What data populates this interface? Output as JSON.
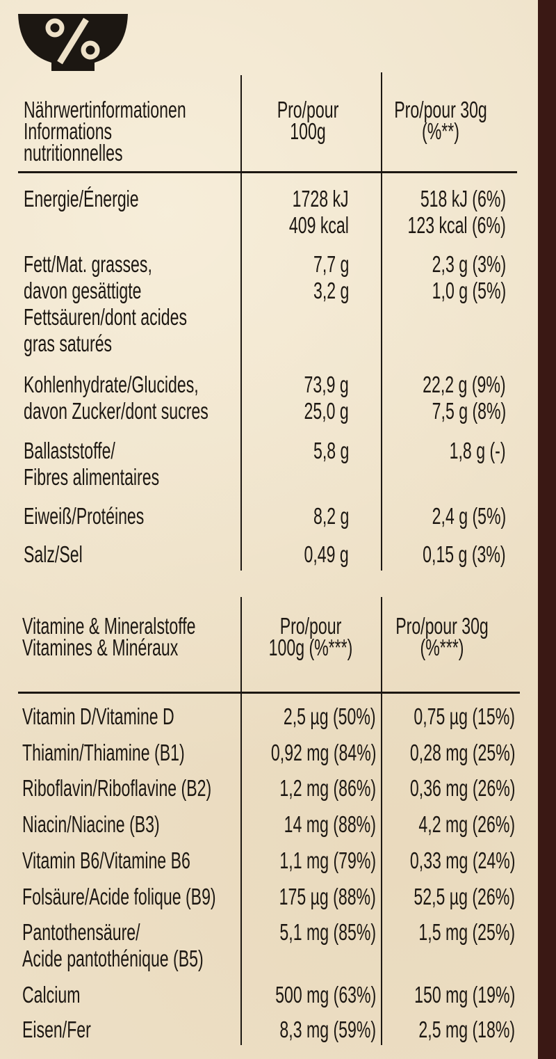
{
  "icon": "percent-bowl-icon",
  "colors": {
    "background": "#eee1c8",
    "text": "#1c1712",
    "edge_strip": "#3a1814"
  },
  "nutrition": {
    "header": {
      "label": [
        "Nährwertinformationen",
        "Informations",
        "nutritionnelles"
      ],
      "col1": [
        "Pro/pour",
        "100g"
      ],
      "col2": [
        "Pro/pour 30g",
        "(%**)"
      ]
    },
    "rows": [
      {
        "label": [
          "Energie/Énergie"
        ],
        "col1": [
          "1728 kJ",
          "409 kcal"
        ],
        "col2": [
          "518 kJ (6%)",
          "123 kcal (6%)"
        ]
      },
      {
        "label": [
          "Fett/Mat. grasses,",
          "davon gesättigte",
          "Fettsäuren/dont acides",
          "gras saturés"
        ],
        "col1": [
          "7,7 g",
          "3,2 g"
        ],
        "col2": [
          "2,3 g (3%)",
          "1,0 g (5%)"
        ]
      },
      {
        "label": [
          "Kohlenhydrate/Glucides,",
          "davon Zucker/dont sucres"
        ],
        "col1": [
          "73,9 g",
          "25,0 g"
        ],
        "col2": [
          "22,2 g (9%)",
          "7,5 g (8%)"
        ]
      },
      {
        "label": [
          "Ballaststoffe/",
          "Fibres alimentaires"
        ],
        "col1": [
          "5,8 g"
        ],
        "col2": [
          "1,8 g (-)"
        ]
      },
      {
        "label": [
          "Eiweiß/Protéines"
        ],
        "col1": [
          "8,2 g"
        ],
        "col2": [
          "2,4 g (5%)"
        ]
      },
      {
        "label": [
          "Salz/Sel"
        ],
        "col1": [
          "0,49 g"
        ],
        "col2": [
          "0,15 g (3%)"
        ]
      }
    ]
  },
  "vitamins": {
    "header": {
      "label": [
        "Vitamine & Mineralstoffe",
        "Vitamines & Minéraux"
      ],
      "col1": [
        "Pro/pour",
        "100g (%***)"
      ],
      "col2": [
        "Pro/pour 30g",
        "(%***)"
      ]
    },
    "rows": [
      {
        "label": [
          "Vitamin D/Vitamine D"
        ],
        "col1": [
          "2,5 µg (50%)"
        ],
        "col2": [
          "0,75 µg (15%)"
        ]
      },
      {
        "label": [
          "Thiamin/Thiamine (B1)"
        ],
        "col1": [
          "0,92 mg (84%)"
        ],
        "col2": [
          "0,28 mg (25%)"
        ]
      },
      {
        "label": [
          "Riboflavin/Riboflavine (B2)"
        ],
        "col1": [
          "1,2 mg (86%)"
        ],
        "col2": [
          "0,36 mg (26%)"
        ]
      },
      {
        "label": [
          "Niacin/Niacine (B3)"
        ],
        "col1": [
          "14 mg (88%)"
        ],
        "col2": [
          "4,2 mg (26%)"
        ]
      },
      {
        "label": [
          "Vitamin B6/Vitamine B6"
        ],
        "col1": [
          "1,1 mg (79%)"
        ],
        "col2": [
          "0,33 mg (24%)"
        ]
      },
      {
        "label": [
          "Folsäure/Acide folique (B9)"
        ],
        "col1": [
          "175 µg (88%)"
        ],
        "col2": [
          "52,5 µg (26%)"
        ]
      },
      {
        "label": [
          "Pantothensäure/",
          "Acide pantothénique (B5)"
        ],
        "col1": [
          "5,1 mg (85%)"
        ],
        "col2": [
          "1,5 mg (25%)"
        ]
      },
      {
        "label": [
          "Calcium"
        ],
        "col1": [
          "500 mg (63%)"
        ],
        "col2": [
          "150 mg (19%)"
        ]
      },
      {
        "label": [
          "Eisen/Fer"
        ],
        "col1": [
          "8,3 mg (59%)"
        ],
        "col2": [
          "2,5 mg (18%)"
        ]
      }
    ]
  }
}
